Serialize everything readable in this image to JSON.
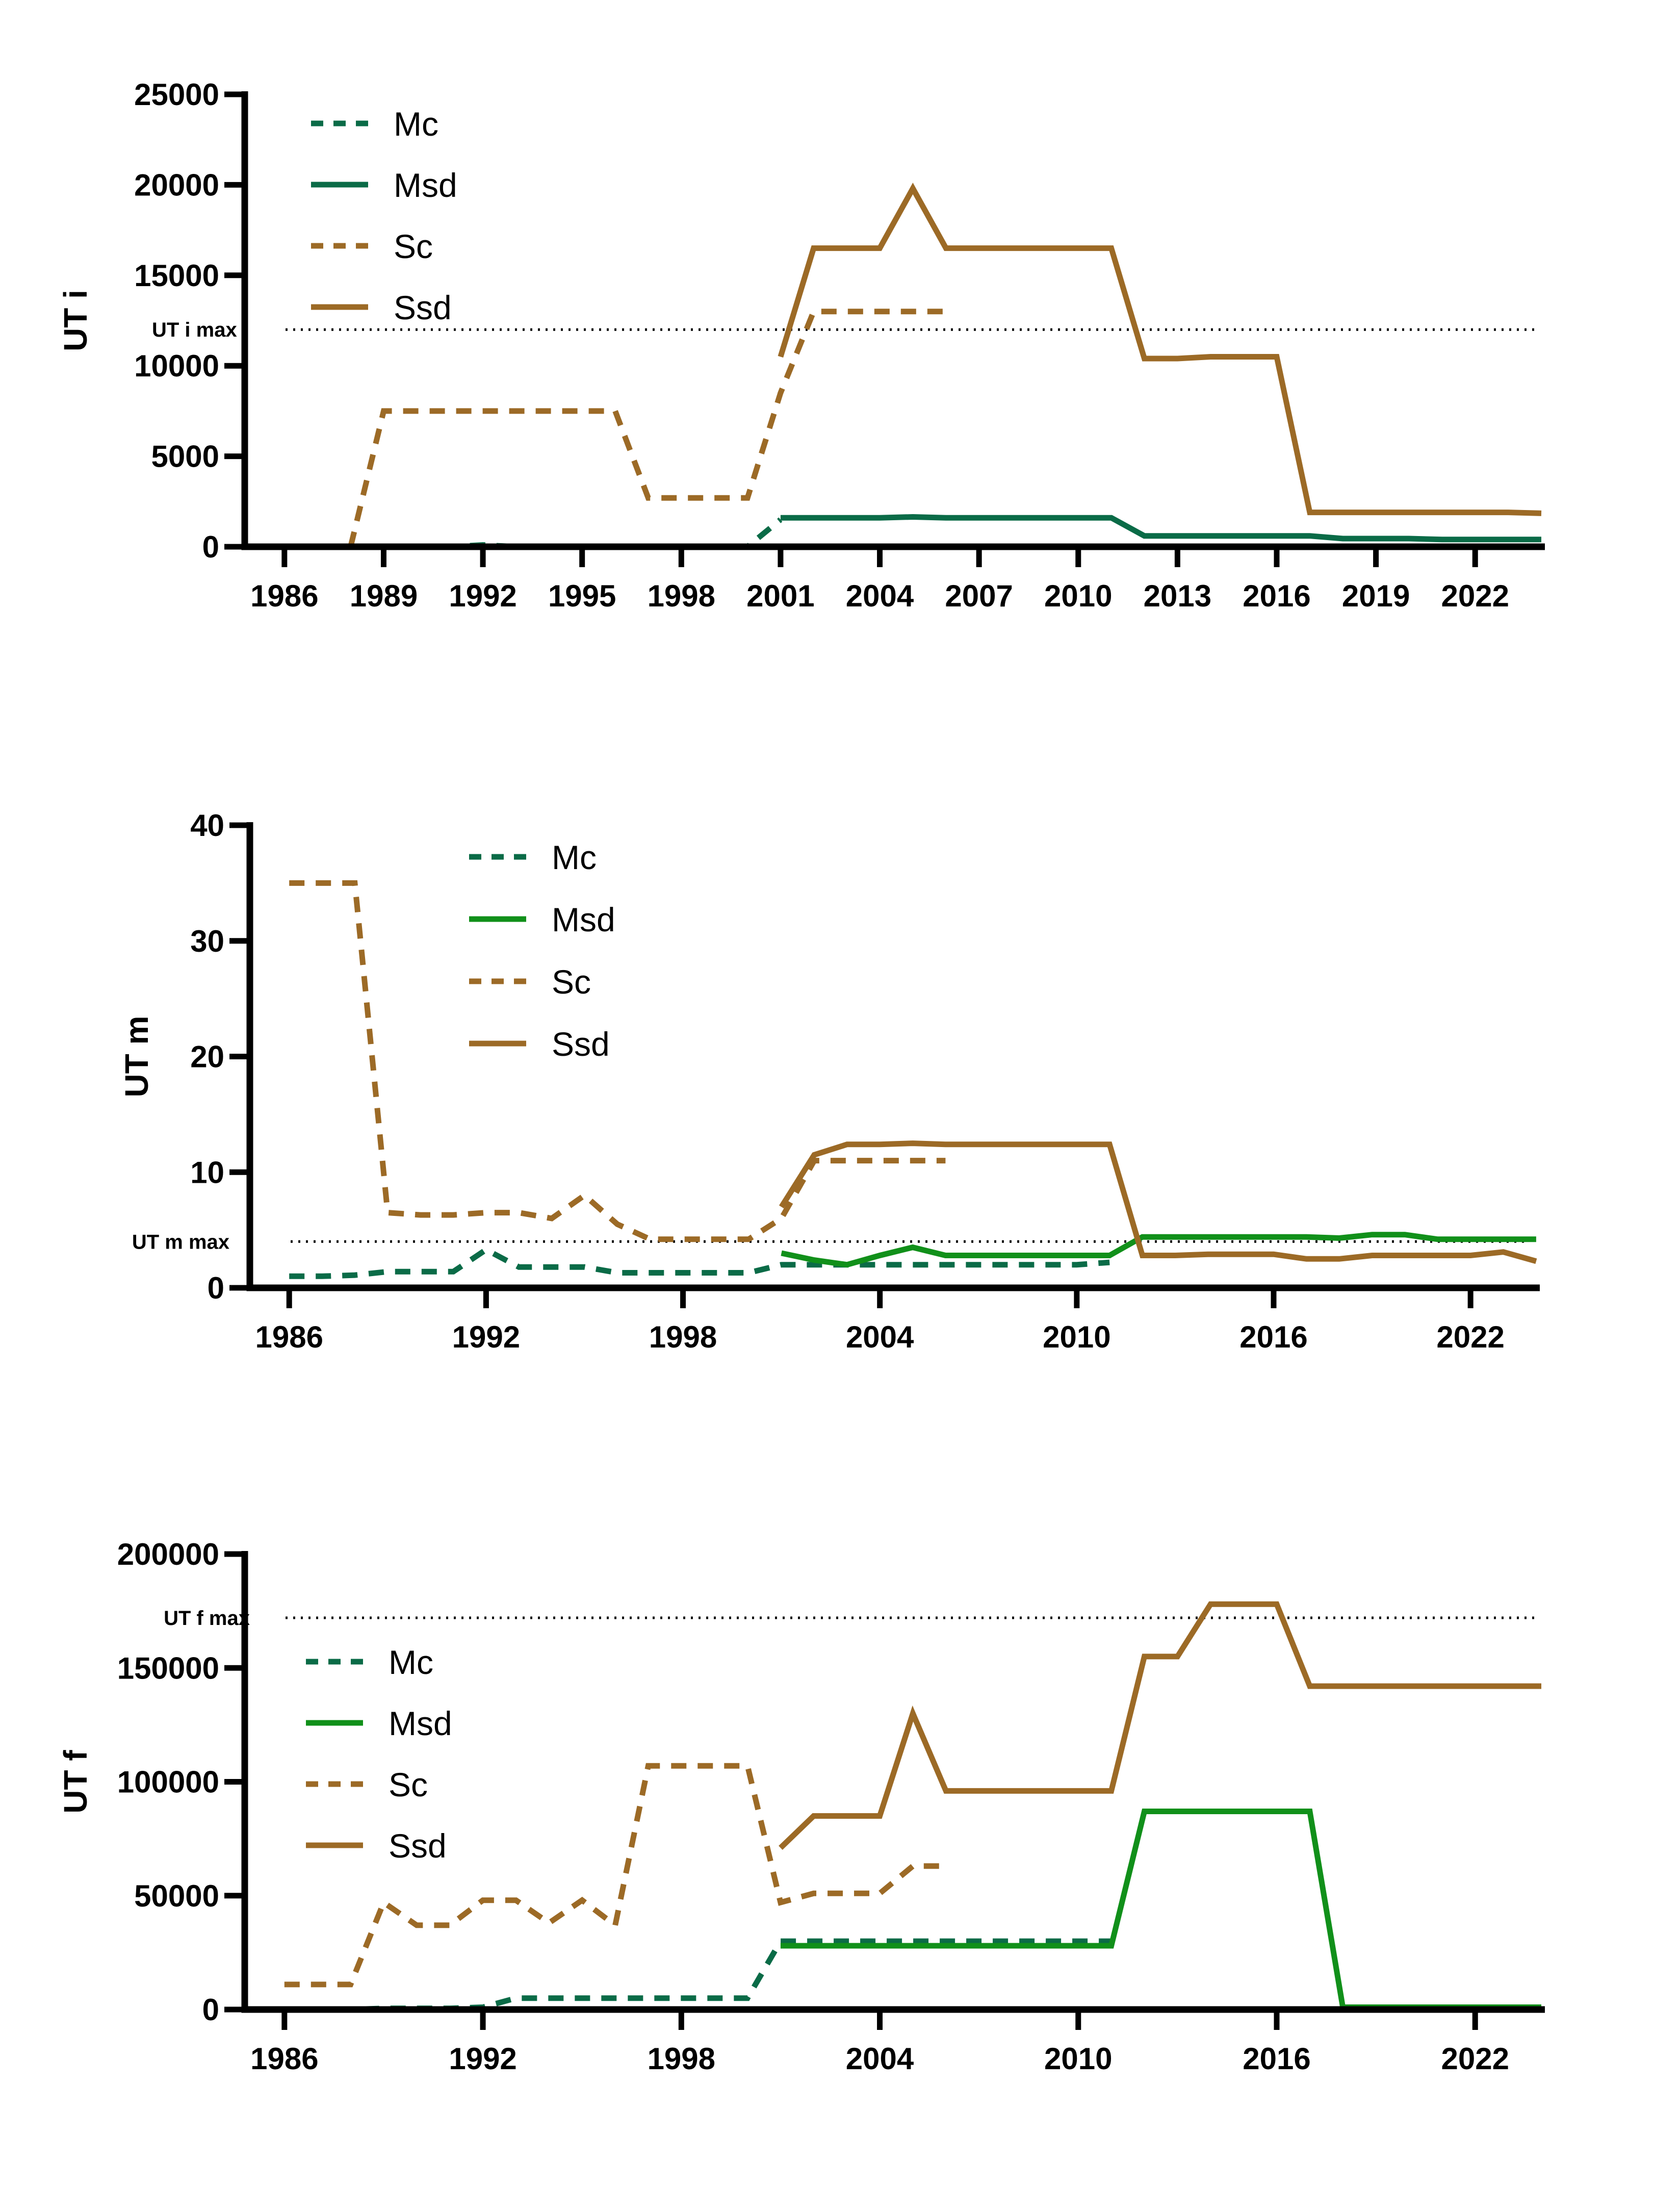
{
  "colors": {
    "brown": "#9c6a26",
    "dark_green": "#0a6b47",
    "green": "#11901a",
    "axis": "#000000"
  },
  "chart_data": [
    {
      "type": "line",
      "ylabel": "UT i",
      "xlabel": "",
      "xlim": [
        1984.8,
        2023.8
      ],
      "ylim": [
        0,
        25000
      ],
      "xticks": [
        1986,
        1989,
        1992,
        1995,
        1998,
        2001,
        2004,
        2007,
        2010,
        2013,
        2016,
        2019,
        2022
      ],
      "yticks": [
        0,
        5000,
        10000,
        15000,
        20000,
        25000
      ],
      "threshold": {
        "label": "UT i max",
        "value": 12000
      },
      "grid": false,
      "legend_position": "top-left",
      "series": [
        {
          "name": "Mc",
          "dashed": true,
          "color": "#0a6b47",
          "x": [
            1986,
            1987,
            1988,
            1989,
            1990,
            1991,
            1992,
            1993,
            1994,
            1995,
            1996,
            1997,
            1998,
            1999,
            2000,
            2001
          ],
          "y": [
            0,
            0,
            0,
            0,
            0,
            0,
            100,
            0,
            0,
            0,
            0,
            0,
            0,
            0,
            0,
            1500
          ]
        },
        {
          "name": "Msd",
          "dashed": false,
          "color": "#0a6b47",
          "x": [
            2001,
            2002,
            2003,
            2004,
            2005,
            2006,
            2007,
            2008,
            2009,
            2010,
            2011,
            2012,
            2013,
            2014,
            2015,
            2016,
            2017,
            2018,
            2019,
            2020,
            2021,
            2022,
            2023,
            2024
          ],
          "y": [
            1600,
            1600,
            1600,
            1600,
            1650,
            1600,
            1600,
            1600,
            1600,
            1600,
            1600,
            600,
            600,
            600,
            600,
            600,
            600,
            450,
            450,
            450,
            400,
            400,
            400,
            400
          ]
        },
        {
          "name": "Sc",
          "dashed": true,
          "color": "#9c6a26",
          "x": [
            1988,
            1989,
            1990,
            1991,
            1992,
            1993,
            1994,
            1995,
            1996,
            1997,
            1998,
            1999,
            2000,
            2001,
            2002,
            2003,
            2004,
            2005,
            2006
          ],
          "y": [
            0,
            7500,
            7500,
            7500,
            7500,
            7500,
            7500,
            7500,
            7500,
            2700,
            2700,
            2700,
            2700,
            8500,
            13000,
            13000,
            13000,
            13000,
            13000
          ]
        },
        {
          "name": "Ssd",
          "dashed": false,
          "color": "#9c6a26",
          "x": [
            2001,
            2002,
            2003,
            2004,
            2005,
            2006,
            2007,
            2008,
            2009,
            2010,
            2011,
            2012,
            2013,
            2014,
            2015,
            2016,
            2017,
            2018,
            2019,
            2020,
            2021,
            2022,
            2023,
            2024
          ],
          "y": [
            10500,
            16500,
            16500,
            16500,
            19800,
            16500,
            16500,
            16500,
            16500,
            16500,
            16500,
            10400,
            10400,
            10500,
            10500,
            10500,
            1900,
            1900,
            1900,
            1900,
            1900,
            1900,
            1900,
            1850
          ]
        }
      ]
    },
    {
      "type": "line",
      "ylabel": "UT m",
      "xlabel": "",
      "xlim": [
        1984.8,
        2023.8
      ],
      "ylim": [
        0,
        40
      ],
      "xticks": [
        1986,
        1992,
        1998,
        2004,
        2010,
        2016,
        2022
      ],
      "yticks": [
        0,
        10,
        20,
        30,
        40
      ],
      "threshold": {
        "label": "UT m max",
        "value": 4
      },
      "grid": false,
      "legend_position": "top-center",
      "series": [
        {
          "name": "Mc",
          "dashed": true,
          "color": "#0a6b47",
          "x": [
            1986,
            1987,
            1988,
            1989,
            1990,
            1991,
            1992,
            1993,
            1994,
            1995,
            1996,
            1997,
            1998,
            1999,
            2000,
            2001,
            2002,
            2003,
            2004,
            2005,
            2006,
            2007,
            2008,
            2009,
            2010,
            2011
          ],
          "y": [
            1,
            1,
            1.1,
            1.4,
            1.4,
            1.4,
            3.3,
            1.8,
            1.8,
            1.8,
            1.3,
            1.3,
            1.3,
            1.3,
            1.3,
            2,
            2,
            2,
            2,
            2,
            2,
            2,
            2,
            2,
            2,
            2.2
          ]
        },
        {
          "name": "Msd",
          "dashed": false,
          "color": "#11901a",
          "x": [
            2001,
            2002,
            2003,
            2004,
            2005,
            2006,
            2007,
            2008,
            2009,
            2010,
            2011,
            2012,
            2013,
            2014,
            2015,
            2016,
            2017,
            2018,
            2019,
            2020,
            2021,
            2022,
            2023,
            2024
          ],
          "y": [
            3,
            2.4,
            2,
            2.8,
            3.5,
            2.8,
            2.8,
            2.8,
            2.8,
            2.8,
            2.8,
            4.4,
            4.4,
            4.4,
            4.4,
            4.4,
            4.4,
            4.3,
            4.6,
            4.6,
            4.2,
            4.2,
            4.2,
            4.2
          ]
        },
        {
          "name": "Sc",
          "dashed": true,
          "color": "#9c6a26",
          "x": [
            1986,
            1987,
            1988,
            1989,
            1990,
            1991,
            1992,
            1993,
            1994,
            1995,
            1996,
            1997,
            1998,
            1999,
            2000,
            2001,
            2002,
            2003,
            2004,
            2005,
            2006
          ],
          "y": [
            35,
            35,
            35,
            6.5,
            6.3,
            6.3,
            6.5,
            6.5,
            6,
            8,
            5.5,
            4.2,
            4.2,
            4.2,
            4.2,
            6,
            11,
            11,
            11,
            11,
            11
          ]
        },
        {
          "name": "Ssd",
          "dashed": false,
          "color": "#9c6a26",
          "x": [
            2001,
            2002,
            2003,
            2004,
            2005,
            2006,
            2007,
            2008,
            2009,
            2010,
            2011,
            2012,
            2013,
            2014,
            2015,
            2016,
            2017,
            2018,
            2019,
            2020,
            2021,
            2022,
            2023,
            2024
          ],
          "y": [
            7,
            11.5,
            12.4,
            12.4,
            12.5,
            12.4,
            12.4,
            12.4,
            12.4,
            12.4,
            12.4,
            2.8,
            2.8,
            2.9,
            2.9,
            2.9,
            2.5,
            2.5,
            2.8,
            2.8,
            2.8,
            2.8,
            3.1,
            2.3
          ]
        }
      ]
    },
    {
      "type": "line",
      "ylabel": "UT f",
      "xlabel": "",
      "xlim": [
        1984.8,
        2023.8
      ],
      "ylim": [
        0,
        200000
      ],
      "xticks": [
        1986,
        1992,
        1998,
        2004,
        2010,
        2016,
        2022
      ],
      "yticks": [
        0,
        50000,
        100000,
        150000,
        200000
      ],
      "threshold": {
        "label": "UT f max",
        "value": 172000
      },
      "grid": false,
      "legend_position": "left",
      "series": [
        {
          "name": "Mc",
          "dashed": true,
          "color": "#0a6b47",
          "x": [
            1986,
            1987,
            1988,
            1989,
            1990,
            1991,
            1992,
            1993,
            1994,
            1995,
            1996,
            1997,
            1998,
            1999,
            2000,
            2001,
            2002,
            2003,
            2004,
            2005,
            2006,
            2007,
            2008,
            2009,
            2010,
            2011
          ],
          "y": [
            0,
            0,
            0,
            500,
            500,
            500,
            1000,
            5000,
            5000,
            5000,
            5000,
            5000,
            5000,
            5000,
            5000,
            30000,
            30000,
            30000,
            30000,
            30000,
            30000,
            30000,
            30000,
            30000,
            30000,
            30000
          ]
        },
        {
          "name": "Msd",
          "dashed": false,
          "color": "#11901a",
          "x": [
            2001,
            2002,
            2003,
            2004,
            2005,
            2006,
            2007,
            2008,
            2009,
            2010,
            2011,
            2012,
            2013,
            2014,
            2015,
            2016,
            2017,
            2018,
            2019,
            2020,
            2021,
            2022,
            2023,
            2024
          ],
          "y": [
            28000,
            28000,
            28000,
            28000,
            28000,
            28000,
            28000,
            28000,
            28000,
            28000,
            28000,
            87000,
            87000,
            87000,
            87000,
            87000,
            87000,
            1000,
            1000,
            1000,
            1000,
            1000,
            1000,
            1000
          ]
        },
        {
          "name": "Sc",
          "dashed": true,
          "color": "#9c6a26",
          "x": [
            1986,
            1987,
            1988,
            1989,
            1990,
            1991,
            1992,
            1993,
            1994,
            1995,
            1996,
            1997,
            1998,
            1999,
            2000,
            2001,
            2002,
            2003,
            2004,
            2005,
            2006
          ],
          "y": [
            11000,
            11000,
            11000,
            47000,
            37000,
            37000,
            48000,
            48000,
            38000,
            48000,
            37000,
            107000,
            107000,
            107000,
            107000,
            47000,
            51000,
            51000,
            51000,
            63000,
            63000
          ]
        },
        {
          "name": "Ssd",
          "dashed": false,
          "color": "#9c6a26",
          "x": [
            2001,
            2002,
            2003,
            2004,
            2005,
            2006,
            2007,
            2008,
            2009,
            2010,
            2011,
            2012,
            2013,
            2014,
            2015,
            2016,
            2017,
            2018,
            2019,
            2020,
            2021,
            2022,
            2023,
            2024
          ],
          "y": [
            71000,
            85000,
            85000,
            85000,
            130000,
            96000,
            96000,
            96000,
            96000,
            96000,
            96000,
            155000,
            155000,
            178000,
            178000,
            178000,
            142000,
            142000,
            142000,
            142000,
            142000,
            142000,
            142000,
            142000
          ]
        }
      ]
    }
  ]
}
